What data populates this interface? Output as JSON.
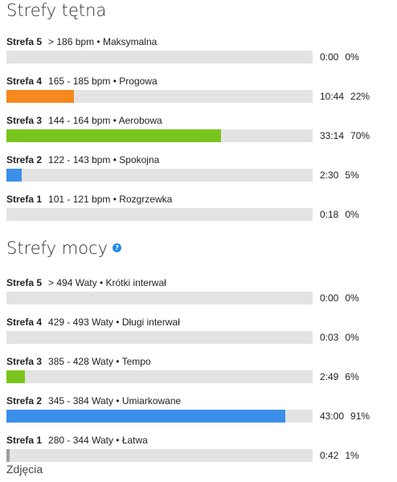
{
  "heart_rate": {
    "title": "Strefy tętna",
    "zones": [
      {
        "name": "Strefa 5",
        "range": "> 186 bpm • Maksymalna",
        "time": "0:00",
        "percent": "0%",
        "fraction": 0.0,
        "color": "#e3e3e3"
      },
      {
        "name": "Strefa 4",
        "range": "165 - 185 bpm • Progowa",
        "time": "10:44",
        "percent": "22%",
        "fraction": 0.22,
        "color": "#f5881f"
      },
      {
        "name": "Strefa 3",
        "range": "144 - 164 bpm • Aerobowa",
        "time": "33:14",
        "percent": "70%",
        "fraction": 0.7,
        "color": "#7ac51d"
      },
      {
        "name": "Strefa 2",
        "range": "122 - 143 bpm • Spokojna",
        "time": "2:30",
        "percent": "5%",
        "fraction": 0.05,
        "color": "#3c8fe8"
      },
      {
        "name": "Strefa 1",
        "range": "101 - 121 bpm • Rozgrzewka",
        "time": "0:18",
        "percent": "0%",
        "fraction": 0.0,
        "color": "#9e9e9e"
      }
    ]
  },
  "power": {
    "title": "Strefy mocy",
    "help_icon": "question-circle-icon",
    "zones": [
      {
        "name": "Strefa 5",
        "range": "> 494 Waty • Krótki interwał",
        "time": "0:00",
        "percent": "0%",
        "fraction": 0.0,
        "color": "#e3e3e3"
      },
      {
        "name": "Strefa 4",
        "range": "429 - 493 Waty • Długi interwał",
        "time": "0:03",
        "percent": "0%",
        "fraction": 0.0,
        "color": "#f5881f"
      },
      {
        "name": "Strefa 3",
        "range": "385 - 428 Waty • Tempo",
        "time": "2:49",
        "percent": "6%",
        "fraction": 0.06,
        "color": "#7ac51d"
      },
      {
        "name": "Strefa 2",
        "range": "345 - 384 Waty • Umiarkowane",
        "time": "43:00",
        "percent": "91%",
        "fraction": 0.91,
        "color": "#3c8fe8"
      },
      {
        "name": "Strefa 1",
        "range": "280 - 344 Waty • Łatwa",
        "time": "0:42",
        "percent": "1%",
        "fraction": 0.01,
        "color": "#9e9e9e"
      }
    ]
  },
  "photos_label": "Zdjęcia"
}
